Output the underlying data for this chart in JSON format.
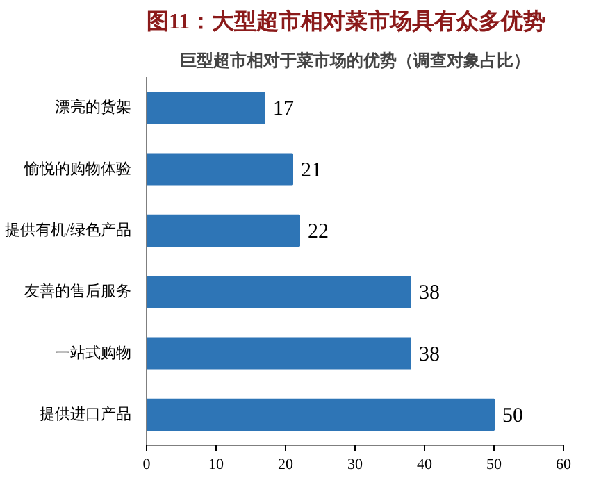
{
  "chart_data": {
    "type": "bar",
    "orientation": "horizontal",
    "title": "图11：大型超市相对菜市场具有众多优势",
    "subtitle": "巨型超市相对于菜市场的优势（调查对象占比）",
    "categories": [
      "漂亮的货架",
      "愉悦的购物体验",
      "提供有机/绿色产品",
      "友善的售后服务",
      "一站式购物",
      "提供进口产品"
    ],
    "values": [
      17,
      21,
      22,
      38,
      38,
      50
    ],
    "color": "#2e75b6",
    "xlim": [
      0,
      60
    ],
    "xticks": [
      0,
      10,
      20,
      30,
      40,
      50,
      60
    ],
    "grid": false,
    "data_labels": true
  }
}
